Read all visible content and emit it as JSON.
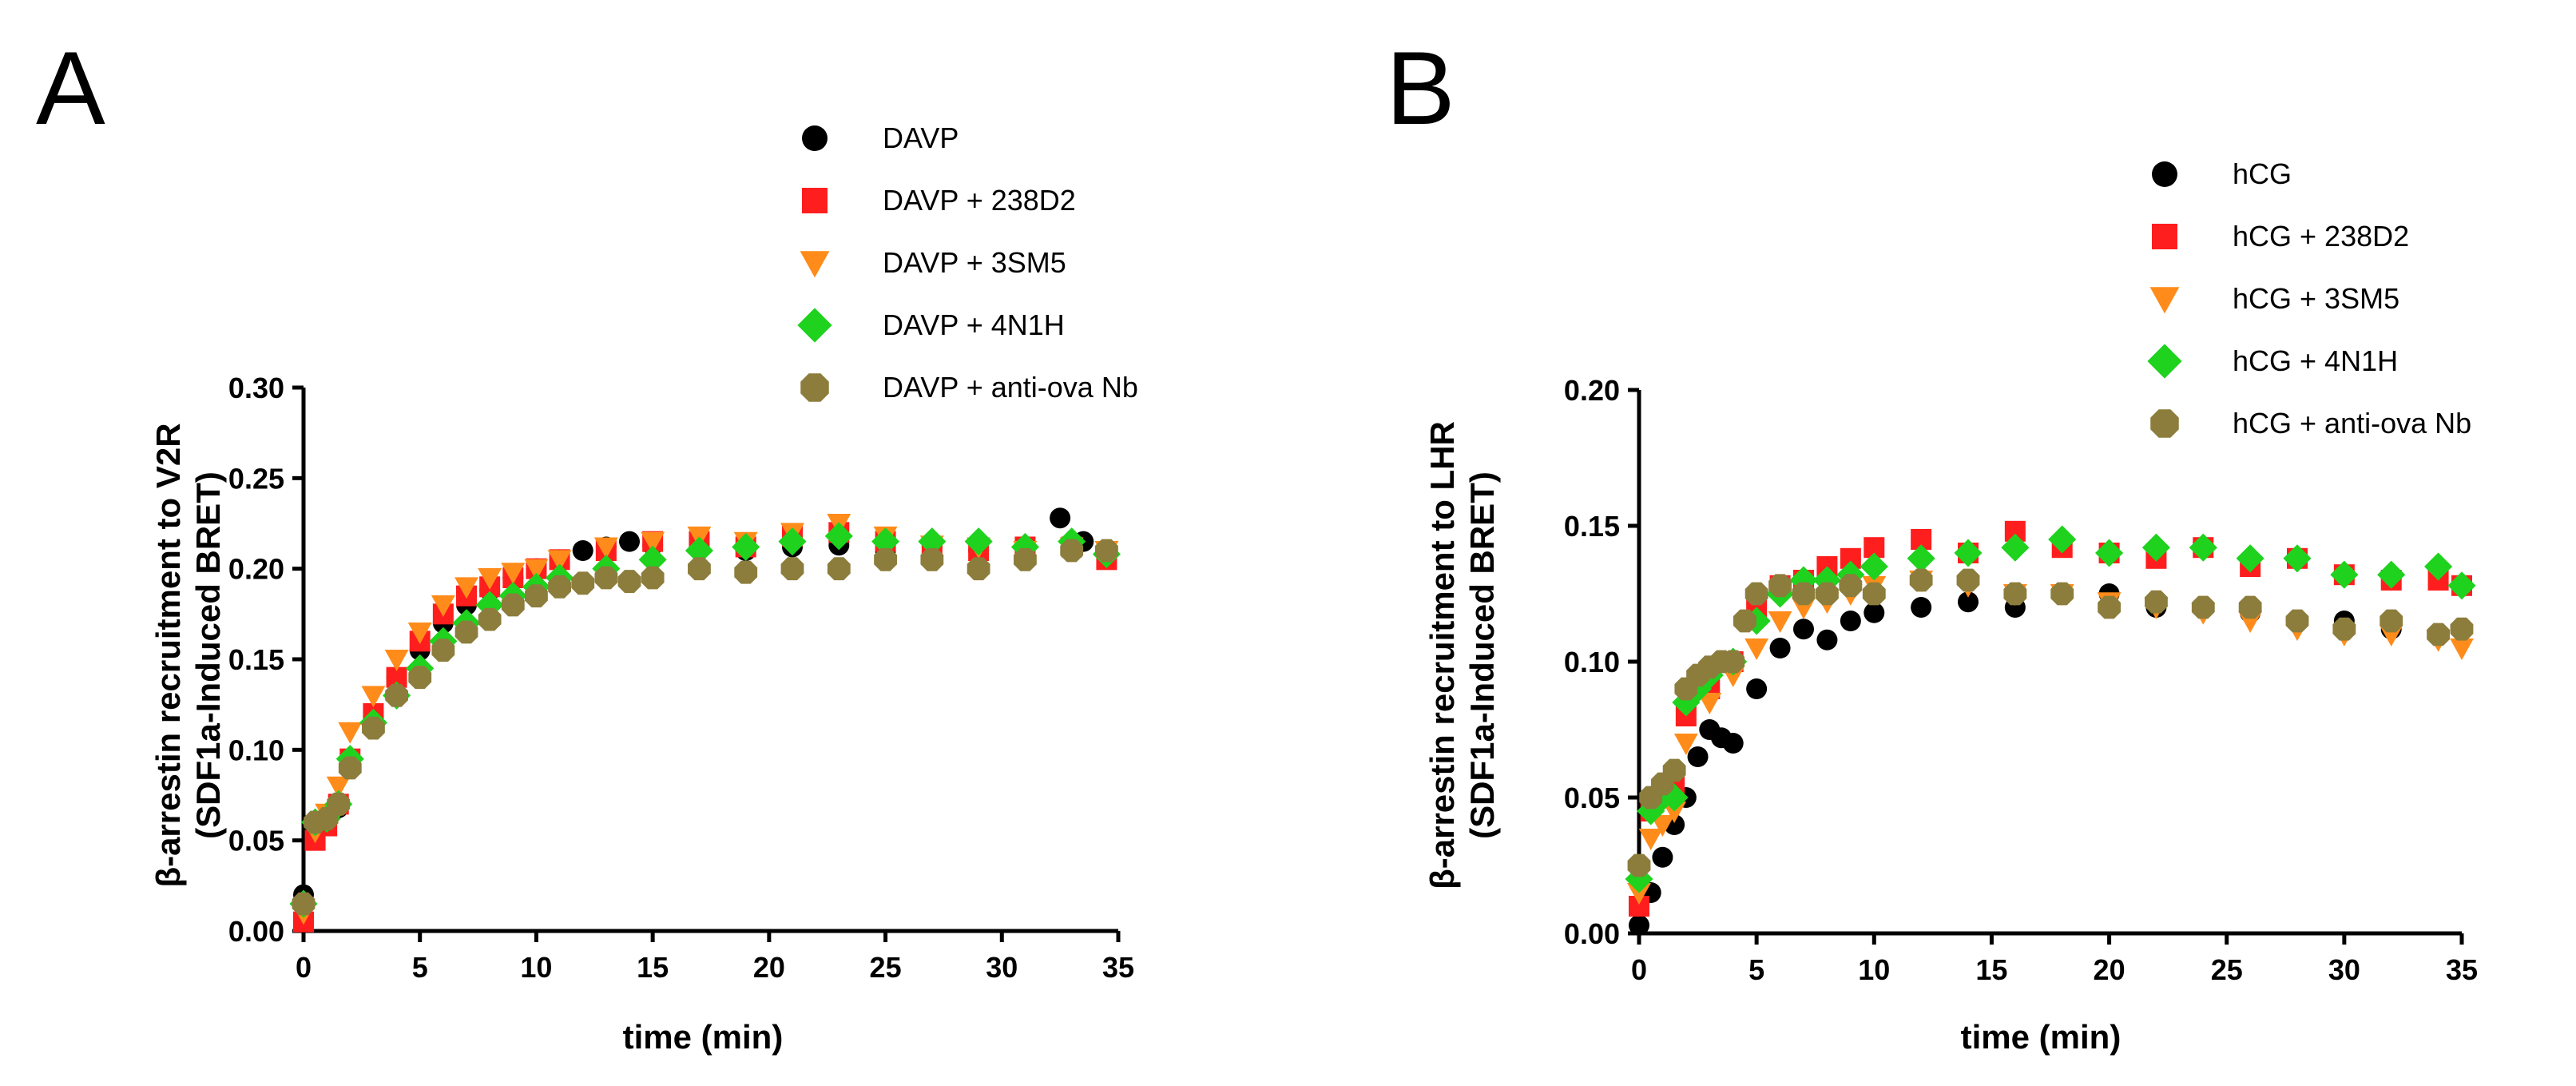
{
  "chart_data": [
    {
      "panel": "A",
      "type": "scatter",
      "xlabel": "time (min)",
      "ylabel_line1": "β-arrestin recruitment to V2R",
      "ylabel_line2": "(SDF1a-Induced BRET)",
      "xlim": [
        0,
        35
      ],
      "ylim": [
        0,
        0.3
      ],
      "xticks": [
        "0",
        "5",
        "10",
        "15",
        "20",
        "25",
        "30",
        "35"
      ],
      "yticks": [
        "0.00",
        "0.05",
        "0.10",
        "0.15",
        "0.20",
        "0.25",
        "0.30"
      ],
      "grid": false,
      "legend": "top-right",
      "series": [
        {
          "name": "DAVP",
          "marker": "circle",
          "color": "#000000",
          "x": [
            0,
            0.5,
            1,
            1.5,
            2,
            3,
            4,
            5,
            6,
            7,
            8,
            9,
            10,
            11,
            12,
            13,
            14,
            15,
            17,
            19,
            21,
            23,
            25,
            27,
            29,
            31,
            32.5,
            33.5,
            34.5
          ],
          "y": [
            0.02,
            0.055,
            0.06,
            0.068,
            0.09,
            0.118,
            0.14,
            0.155,
            0.17,
            0.18,
            0.188,
            0.195,
            0.2,
            0.205,
            0.21,
            0.212,
            0.215,
            0.213,
            0.212,
            0.21,
            0.212,
            0.213,
            0.21,
            0.212,
            0.21,
            0.21,
            0.228,
            0.215,
            0.21
          ]
        },
        {
          "name": "DAVP + 238D2",
          "marker": "square",
          "color": "#ff1e1e",
          "x": [
            0,
            0.5,
            1,
            1.5,
            2,
            3,
            4,
            5,
            6,
            7,
            8,
            9,
            10,
            11,
            13,
            15,
            17,
            19,
            21,
            23,
            25,
            27,
            29,
            31,
            33,
            34.5
          ],
          "y": [
            0.005,
            0.05,
            0.058,
            0.07,
            0.095,
            0.12,
            0.14,
            0.16,
            0.175,
            0.185,
            0.19,
            0.195,
            0.2,
            0.205,
            0.21,
            0.215,
            0.215,
            0.212,
            0.218,
            0.22,
            0.215,
            0.212,
            0.21,
            0.212,
            0.212,
            0.205
          ]
        },
        {
          "name": "DAVP + 3SM5",
          "marker": "triangle-down",
          "color": "#ff8c1a",
          "x": [
            0,
            0.5,
            1,
            1.5,
            2,
            3,
            4,
            5,
            6,
            7,
            8,
            9,
            10,
            11,
            13,
            15,
            17,
            19,
            21,
            23,
            25,
            27,
            29,
            31,
            33,
            34.5
          ],
          "y": [
            0.01,
            0.055,
            0.065,
            0.08,
            0.11,
            0.13,
            0.15,
            0.165,
            0.18,
            0.19,
            0.195,
            0.198,
            0.2,
            0.205,
            0.212,
            0.215,
            0.218,
            0.215,
            0.22,
            0.225,
            0.218,
            0.213,
            0.212,
            0.21,
            0.212,
            0.21
          ]
        },
        {
          "name": "DAVP + 4N1H",
          "marker": "diamond",
          "color": "#1ed21e",
          "x": [
            0,
            0.5,
            1,
            1.5,
            2,
            3,
            4,
            5,
            6,
            7,
            8,
            9,
            10,
            11,
            13,
            15,
            17,
            19,
            21,
            23,
            25,
            27,
            29,
            31,
            33,
            34.5
          ],
          "y": [
            0.015,
            0.06,
            0.062,
            0.07,
            0.095,
            0.115,
            0.13,
            0.145,
            0.16,
            0.17,
            0.18,
            0.185,
            0.19,
            0.195,
            0.2,
            0.205,
            0.21,
            0.212,
            0.215,
            0.218,
            0.215,
            0.215,
            0.215,
            0.212,
            0.215,
            0.208
          ]
        },
        {
          "name": "DAVP + anti-ova Nb",
          "marker": "octagon",
          "color": "#8c7d3c",
          "x": [
            0,
            0.5,
            1,
            1.5,
            2,
            3,
            4,
            5,
            6,
            7,
            8,
            9,
            10,
            11,
            12,
            13,
            14,
            15,
            17,
            19,
            21,
            23,
            25,
            27,
            29,
            31,
            33,
            34.5
          ],
          "y": [
            0.015,
            0.06,
            0.062,
            0.07,
            0.09,
            0.112,
            0.13,
            0.14,
            0.155,
            0.165,
            0.172,
            0.18,
            0.185,
            0.19,
            0.192,
            0.195,
            0.193,
            0.195,
            0.2,
            0.198,
            0.2,
            0.2,
            0.205,
            0.205,
            0.2,
            0.205,
            0.21,
            0.21
          ]
        }
      ],
      "legend_labels": [
        "DAVP",
        "DAVP + 238D2",
        "DAVP + 3SM5",
        "DAVP + 4N1H",
        "DAVP + anti-ova Nb"
      ]
    },
    {
      "panel": "B",
      "type": "scatter",
      "xlabel": "time (min)",
      "ylabel_line1": "β-arrestin recruitment to LHR",
      "ylabel_line2": "(SDF1a-Induced BRET)",
      "xlim": [
        0,
        35
      ],
      "ylim": [
        0,
        0.2
      ],
      "xticks": [
        "0",
        "5",
        "10",
        "15",
        "20",
        "25",
        "30",
        "35"
      ],
      "yticks": [
        "0.00",
        "0.05",
        "0.10",
        "0.15",
        "0.20"
      ],
      "grid": false,
      "legend": "top-right",
      "series": [
        {
          "name": "hCG",
          "marker": "circle",
          "color": "#000000",
          "x": [
            0,
            0.5,
            1,
            1.5,
            2,
            2.5,
            3,
            3.5,
            4,
            5,
            6,
            7,
            8,
            9,
            10,
            12,
            14,
            16,
            18,
            20,
            22,
            24,
            26,
            28,
            30,
            32,
            34,
            35
          ],
          "y": [
            0.003,
            0.015,
            0.028,
            0.04,
            0.05,
            0.065,
            0.075,
            0.072,
            0.07,
            0.09,
            0.105,
            0.112,
            0.108,
            0.115,
            0.118,
            0.12,
            0.122,
            0.12,
            0.125,
            0.125,
            0.12,
            0.12,
            0.118,
            0.115,
            0.115,
            0.112,
            0.11,
            0.112
          ]
        },
        {
          "name": "hCG + 238D2",
          "marker": "square",
          "color": "#ff1e1e",
          "x": [
            0,
            0.5,
            1,
            1.5,
            2,
            3,
            4,
            5,
            6,
            7,
            8,
            9,
            10,
            12,
            14,
            16,
            18,
            20,
            22,
            24,
            26,
            28,
            30,
            32,
            34,
            35
          ],
          "y": [
            0.01,
            0.045,
            0.05,
            0.055,
            0.08,
            0.09,
            0.1,
            0.12,
            0.128,
            0.13,
            0.135,
            0.138,
            0.142,
            0.145,
            0.14,
            0.148,
            0.142,
            0.14,
            0.138,
            0.142,
            0.135,
            0.138,
            0.132,
            0.13,
            0.13,
            0.128
          ]
        },
        {
          "name": "hCG + 3SM5",
          "marker": "triangle-down",
          "color": "#ff8c1a",
          "x": [
            0,
            0.5,
            1,
            1.5,
            2,
            3,
            4,
            5,
            6,
            7,
            8,
            9,
            10,
            12,
            14,
            16,
            18,
            20,
            22,
            24,
            26,
            28,
            30,
            32,
            34,
            35
          ],
          "y": [
            0.015,
            0.035,
            0.04,
            0.045,
            0.07,
            0.085,
            0.095,
            0.105,
            0.115,
            0.12,
            0.122,
            0.125,
            0.128,
            0.13,
            0.128,
            0.125,
            0.125,
            0.122,
            0.12,
            0.118,
            0.115,
            0.112,
            0.11,
            0.11,
            0.108,
            0.105
          ]
        },
        {
          "name": "hCG + 4N1H",
          "marker": "diamond",
          "color": "#1ed21e",
          "x": [
            0,
            0.5,
            1,
            1.5,
            2,
            2.5,
            3,
            4,
            5,
            6,
            7,
            8,
            9,
            10,
            12,
            14,
            16,
            18,
            20,
            22,
            24,
            26,
            28,
            30,
            32,
            34,
            35
          ],
          "y": [
            0.02,
            0.045,
            0.05,
            0.05,
            0.085,
            0.09,
            0.095,
            0.1,
            0.115,
            0.125,
            0.13,
            0.13,
            0.132,
            0.135,
            0.138,
            0.14,
            0.142,
            0.145,
            0.14,
            0.142,
            0.142,
            0.138,
            0.138,
            0.132,
            0.132,
            0.135,
            0.128
          ]
        },
        {
          "name": "hCG + anti-ova Nb",
          "marker": "octagon",
          "color": "#8c7d3c",
          "x": [
            0,
            0.5,
            1,
            1.5,
            2,
            2.5,
            3,
            3.5,
            4,
            4.5,
            5,
            6,
            7,
            8,
            9,
            10,
            12,
            14,
            16,
            18,
            20,
            22,
            24,
            26,
            28,
            30,
            32,
            34,
            35
          ],
          "y": [
            0.025,
            0.05,
            0.055,
            0.06,
            0.09,
            0.095,
            0.098,
            0.1,
            0.1,
            0.115,
            0.125,
            0.128,
            0.125,
            0.125,
            0.128,
            0.125,
            0.13,
            0.13,
            0.125,
            0.125,
            0.12,
            0.122,
            0.12,
            0.12,
            0.115,
            0.112,
            0.115,
            0.11,
            0.112
          ]
        }
      ],
      "legend_labels": [
        "hCG",
        "hCG + 238D2",
        "hCG + 3SM5",
        "hCG + 4N1H",
        "hCG + anti-ova Nb"
      ]
    }
  ]
}
